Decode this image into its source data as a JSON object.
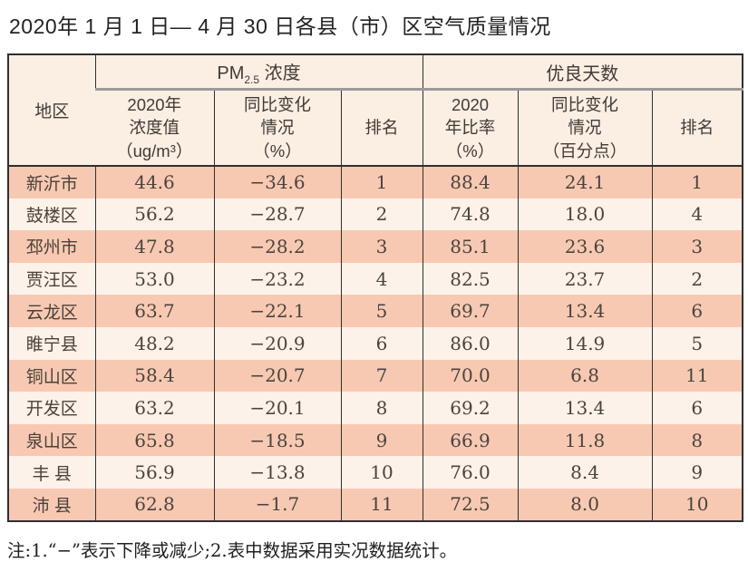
{
  "page": {
    "title": "2020年 1 月 1 日— 4 月 30 日各县（市）区空气质量情况",
    "note": "注:1.“−”表示下降或减少;2.表中数据采用实况数据统计。"
  },
  "table": {
    "corner_header": "地区",
    "group_headers": {
      "pm": {
        "prefix": "PM",
        "sub": "2.5",
        "suffix": " 浓度"
      },
      "good_days": "优良天数"
    },
    "sub_headers": {
      "pm_value": "2020年\n浓度值\n（ug/m³）",
      "pm_change": "同比变化\n情况\n（%）",
      "pm_rank": "排名",
      "days_rate": "2020\n年比率\n（%）",
      "days_change": "同比变化\n情况\n（百分点）",
      "days_rank": "排名"
    },
    "rows": [
      {
        "region": "新沂市",
        "pm_value": "44.6",
        "pm_change": "−34.6",
        "pm_rank": "1",
        "days_rate": "88.4",
        "days_change": "24.1",
        "days_rank": "1"
      },
      {
        "region": "鼓楼区",
        "pm_value": "56.2",
        "pm_change": "−28.7",
        "pm_rank": "2",
        "days_rate": "74.8",
        "days_change": "18.0",
        "days_rank": "4"
      },
      {
        "region": "邳州市",
        "pm_value": "47.8",
        "pm_change": "−28.2",
        "pm_rank": "3",
        "days_rate": "85.1",
        "days_change": "23.6",
        "days_rank": "3"
      },
      {
        "region": "贾汪区",
        "pm_value": "53.0",
        "pm_change": "−23.2",
        "pm_rank": "4",
        "days_rate": "82.5",
        "days_change": "23.7",
        "days_rank": "2"
      },
      {
        "region": "云龙区",
        "pm_value": "63.7",
        "pm_change": "−22.1",
        "pm_rank": "5",
        "days_rate": "69.7",
        "days_change": "13.4",
        "days_rank": "6"
      },
      {
        "region": "睢宁县",
        "pm_value": "48.2",
        "pm_change": "−20.9",
        "pm_rank": "6",
        "days_rate": "86.0",
        "days_change": "14.9",
        "days_rank": "5"
      },
      {
        "region": "铜山区",
        "pm_value": "58.4",
        "pm_change": "−20.7",
        "pm_rank": "7",
        "days_rate": "70.0",
        "days_change": "6.8",
        "days_rank": "11"
      },
      {
        "region": "开发区",
        "pm_value": "63.2",
        "pm_change": "−20.1",
        "pm_rank": "8",
        "days_rate": "69.2",
        "days_change": "13.4",
        "days_rank": "6"
      },
      {
        "region": "泉山区",
        "pm_value": "65.8",
        "pm_change": "−18.5",
        "pm_rank": "9",
        "days_rate": "66.9",
        "days_change": "11.8",
        "days_rank": "8"
      },
      {
        "region": "丰 县",
        "pm_value": "56.9",
        "pm_change": "−13.8",
        "pm_rank": "10",
        "days_rate": "76.0",
        "days_change": "8.4",
        "days_rank": "9"
      },
      {
        "region": "沛 县",
        "pm_value": "62.8",
        "pm_change": "−1.7",
        "pm_rank": "11",
        "days_rate": "72.5",
        "days_change": "8.0",
        "days_rank": "10"
      }
    ]
  },
  "colors": {
    "row_dark": "#f8c9b2",
    "row_light": "#fdf2e9",
    "header_bg": "#fbeee3",
    "border_dark": "#2f2f2f",
    "border_gray": "#9b9b9b"
  }
}
